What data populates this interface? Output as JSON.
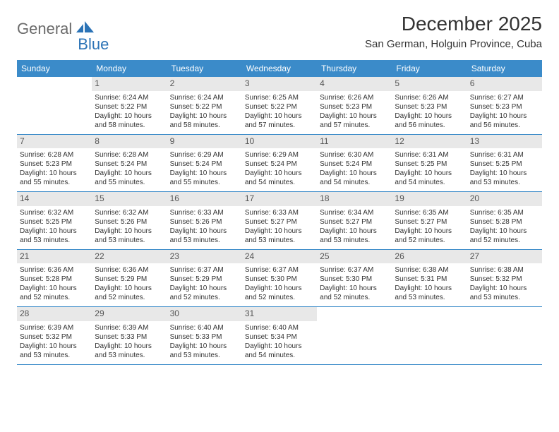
{
  "logo": {
    "general": "General",
    "blue": "Blue"
  },
  "title": "December 2025",
  "location": "San German, Holguin Province, Cuba",
  "colors": {
    "header_bg": "#3b8bc9",
    "header_text": "#ffffff",
    "daynum_bg": "#e8e8e8",
    "row_border": "#3b8bc9",
    "logo_gray": "#6b6b6b",
    "logo_blue": "#2b73b6"
  },
  "dayNames": [
    "Sunday",
    "Monday",
    "Tuesday",
    "Wednesday",
    "Thursday",
    "Friday",
    "Saturday"
  ],
  "weeks": [
    [
      {
        "empty": true
      },
      {
        "num": "1",
        "sunrise": "Sunrise: 6:24 AM",
        "sunset": "Sunset: 5:22 PM",
        "daylight": "Daylight: 10 hours and 58 minutes."
      },
      {
        "num": "2",
        "sunrise": "Sunrise: 6:24 AM",
        "sunset": "Sunset: 5:22 PM",
        "daylight": "Daylight: 10 hours and 58 minutes."
      },
      {
        "num": "3",
        "sunrise": "Sunrise: 6:25 AM",
        "sunset": "Sunset: 5:22 PM",
        "daylight": "Daylight: 10 hours and 57 minutes."
      },
      {
        "num": "4",
        "sunrise": "Sunrise: 6:26 AM",
        "sunset": "Sunset: 5:23 PM",
        "daylight": "Daylight: 10 hours and 57 minutes."
      },
      {
        "num": "5",
        "sunrise": "Sunrise: 6:26 AM",
        "sunset": "Sunset: 5:23 PM",
        "daylight": "Daylight: 10 hours and 56 minutes."
      },
      {
        "num": "6",
        "sunrise": "Sunrise: 6:27 AM",
        "sunset": "Sunset: 5:23 PM",
        "daylight": "Daylight: 10 hours and 56 minutes."
      }
    ],
    [
      {
        "num": "7",
        "sunrise": "Sunrise: 6:28 AM",
        "sunset": "Sunset: 5:23 PM",
        "daylight": "Daylight: 10 hours and 55 minutes."
      },
      {
        "num": "8",
        "sunrise": "Sunrise: 6:28 AM",
        "sunset": "Sunset: 5:24 PM",
        "daylight": "Daylight: 10 hours and 55 minutes."
      },
      {
        "num": "9",
        "sunrise": "Sunrise: 6:29 AM",
        "sunset": "Sunset: 5:24 PM",
        "daylight": "Daylight: 10 hours and 55 minutes."
      },
      {
        "num": "10",
        "sunrise": "Sunrise: 6:29 AM",
        "sunset": "Sunset: 5:24 PM",
        "daylight": "Daylight: 10 hours and 54 minutes."
      },
      {
        "num": "11",
        "sunrise": "Sunrise: 6:30 AM",
        "sunset": "Sunset: 5:24 PM",
        "daylight": "Daylight: 10 hours and 54 minutes."
      },
      {
        "num": "12",
        "sunrise": "Sunrise: 6:31 AM",
        "sunset": "Sunset: 5:25 PM",
        "daylight": "Daylight: 10 hours and 54 minutes."
      },
      {
        "num": "13",
        "sunrise": "Sunrise: 6:31 AM",
        "sunset": "Sunset: 5:25 PM",
        "daylight": "Daylight: 10 hours and 53 minutes."
      }
    ],
    [
      {
        "num": "14",
        "sunrise": "Sunrise: 6:32 AM",
        "sunset": "Sunset: 5:25 PM",
        "daylight": "Daylight: 10 hours and 53 minutes."
      },
      {
        "num": "15",
        "sunrise": "Sunrise: 6:32 AM",
        "sunset": "Sunset: 5:26 PM",
        "daylight": "Daylight: 10 hours and 53 minutes."
      },
      {
        "num": "16",
        "sunrise": "Sunrise: 6:33 AM",
        "sunset": "Sunset: 5:26 PM",
        "daylight": "Daylight: 10 hours and 53 minutes."
      },
      {
        "num": "17",
        "sunrise": "Sunrise: 6:33 AM",
        "sunset": "Sunset: 5:27 PM",
        "daylight": "Daylight: 10 hours and 53 minutes."
      },
      {
        "num": "18",
        "sunrise": "Sunrise: 6:34 AM",
        "sunset": "Sunset: 5:27 PM",
        "daylight": "Daylight: 10 hours and 53 minutes."
      },
      {
        "num": "19",
        "sunrise": "Sunrise: 6:35 AM",
        "sunset": "Sunset: 5:27 PM",
        "daylight": "Daylight: 10 hours and 52 minutes."
      },
      {
        "num": "20",
        "sunrise": "Sunrise: 6:35 AM",
        "sunset": "Sunset: 5:28 PM",
        "daylight": "Daylight: 10 hours and 52 minutes."
      }
    ],
    [
      {
        "num": "21",
        "sunrise": "Sunrise: 6:36 AM",
        "sunset": "Sunset: 5:28 PM",
        "daylight": "Daylight: 10 hours and 52 minutes."
      },
      {
        "num": "22",
        "sunrise": "Sunrise: 6:36 AM",
        "sunset": "Sunset: 5:29 PM",
        "daylight": "Daylight: 10 hours and 52 minutes."
      },
      {
        "num": "23",
        "sunrise": "Sunrise: 6:37 AM",
        "sunset": "Sunset: 5:29 PM",
        "daylight": "Daylight: 10 hours and 52 minutes."
      },
      {
        "num": "24",
        "sunrise": "Sunrise: 6:37 AM",
        "sunset": "Sunset: 5:30 PM",
        "daylight": "Daylight: 10 hours and 52 minutes."
      },
      {
        "num": "25",
        "sunrise": "Sunrise: 6:37 AM",
        "sunset": "Sunset: 5:30 PM",
        "daylight": "Daylight: 10 hours and 52 minutes."
      },
      {
        "num": "26",
        "sunrise": "Sunrise: 6:38 AM",
        "sunset": "Sunset: 5:31 PM",
        "daylight": "Daylight: 10 hours and 53 minutes."
      },
      {
        "num": "27",
        "sunrise": "Sunrise: 6:38 AM",
        "sunset": "Sunset: 5:32 PM",
        "daylight": "Daylight: 10 hours and 53 minutes."
      }
    ],
    [
      {
        "num": "28",
        "sunrise": "Sunrise: 6:39 AM",
        "sunset": "Sunset: 5:32 PM",
        "daylight": "Daylight: 10 hours and 53 minutes."
      },
      {
        "num": "29",
        "sunrise": "Sunrise: 6:39 AM",
        "sunset": "Sunset: 5:33 PM",
        "daylight": "Daylight: 10 hours and 53 minutes."
      },
      {
        "num": "30",
        "sunrise": "Sunrise: 6:40 AM",
        "sunset": "Sunset: 5:33 PM",
        "daylight": "Daylight: 10 hours and 53 minutes."
      },
      {
        "num": "31",
        "sunrise": "Sunrise: 6:40 AM",
        "sunset": "Sunset: 5:34 PM",
        "daylight": "Daylight: 10 hours and 54 minutes."
      },
      {
        "empty": true
      },
      {
        "empty": true
      },
      {
        "empty": true
      }
    ]
  ]
}
